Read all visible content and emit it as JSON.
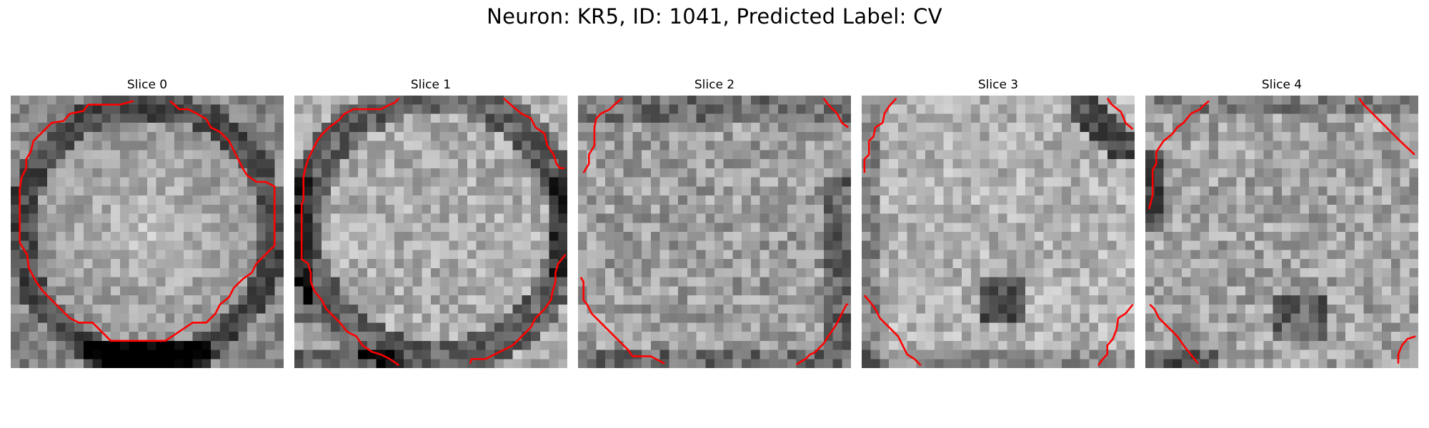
{
  "figure": {
    "title": "Neuron: KR5, ID: 1041, Predicted Label: CV"
  },
  "panels": [
    {
      "title": "Slice 0"
    },
    {
      "title": "Slice 1"
    },
    {
      "title": "Slice 2"
    },
    {
      "title": "Slice 3"
    },
    {
      "title": "Slice 4"
    }
  ],
  "colors": {
    "contour": "#ff0000",
    "background": "#ffffff"
  }
}
